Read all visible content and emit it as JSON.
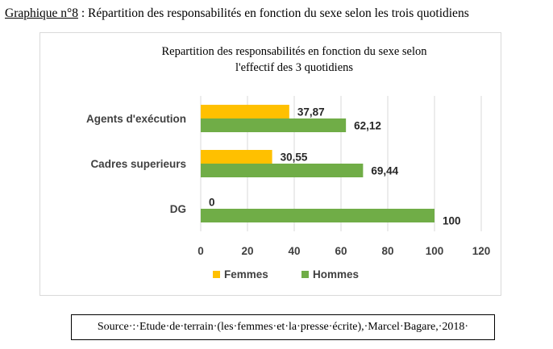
{
  "caption": {
    "label": "Graphique n°8",
    "text": " : Répartition des responsabilités en fonction du sexe selon les trois quotidiens"
  },
  "source": "Source·:·Etude·de·terrain·(les·femmes·et·la·presse·écrite),·Marcel·Bagare,·2018·",
  "chart_data": {
    "type": "bar",
    "orientation": "horizontal",
    "title_lines": [
      "Repartition des responsabilités en fonction du sexe selon",
      "l'effectif des 3 quotidiens"
    ],
    "categories": [
      "Agents d'exécution",
      "Cadres superieurs",
      "DG"
    ],
    "series": [
      {
        "name": "Femmes",
        "color": "#ffc000",
        "values": [
          37.87,
          30.55,
          0
        ],
        "labels": [
          "37,87",
          "30,55",
          "0"
        ]
      },
      {
        "name": "Hommes",
        "color": "#70ad47",
        "values": [
          62.12,
          69.44,
          100
        ],
        "labels": [
          "62,12",
          "69,44",
          "100"
        ]
      }
    ],
    "xlim": [
      0,
      120
    ],
    "xticks": [
      0,
      20,
      40,
      60,
      80,
      100,
      120
    ],
    "xtick_labels": [
      "0",
      "20",
      "40",
      "60",
      "80",
      "100",
      "120"
    ],
    "grid": true,
    "grid_color": "#d9d9d9",
    "legend_position": "bottom"
  }
}
